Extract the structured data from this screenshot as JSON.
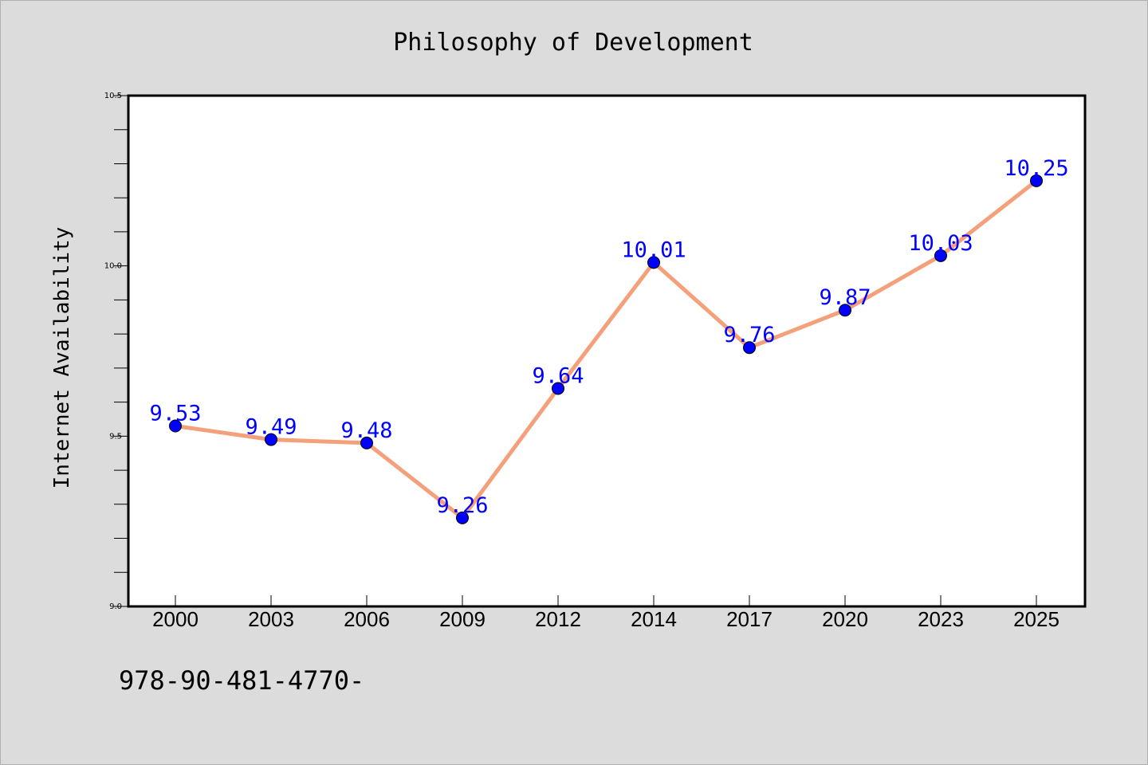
{
  "chart_data": {
    "type": "line",
    "title": "Philosophy of Development",
    "xlabel": "",
    "ylabel": "Internet Availability",
    "categories": [
      "2000",
      "2003",
      "2006",
      "2009",
      "2012",
      "2014",
      "2017",
      "2020",
      "2023",
      "2025"
    ],
    "series": [
      {
        "values": [
          9.53,
          9.49,
          9.48,
          9.26,
          9.64,
          10.01,
          9.76,
          9.87,
          10.03,
          10.25
        ]
      }
    ],
    "data_labels": [
      "9.53",
      "9.49",
      "9.48",
      "9.26",
      "9.64",
      "10.01",
      "9.76",
      "9.87",
      "10.03",
      "10.25"
    ],
    "ylim": [
      9.0,
      10.5
    ],
    "y_ticks": [
      "9.0",
      "9.5",
      "10.0",
      "10.5"
    ],
    "y_minor_step": 0.1,
    "grid": false,
    "colors": {
      "line": "#f4a07a",
      "marker": "#0000ff",
      "data_label": "#0000ff",
      "background": "#dcdcdc",
      "plot_background": "#ffffff"
    }
  },
  "footer": {
    "text": "978-90-481-4770-"
  }
}
